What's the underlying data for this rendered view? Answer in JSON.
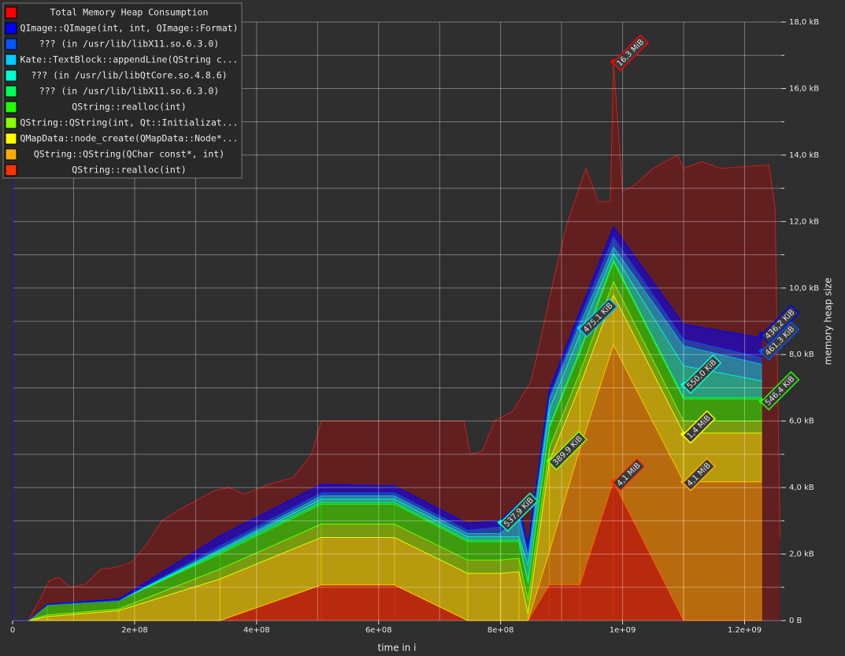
{
  "chart_data": {
    "type": "stacked-area",
    "x_label": "time in i",
    "y_label": "memory heap size",
    "xlim": [
      0,
      1260000000
    ],
    "ylim": [
      0,
      18
    ],
    "xticks": [
      0,
      {
        "value": 200000000,
        "label": "2e+08"
      },
      {
        "value": 400000000,
        "label": "4e+08"
      },
      {
        "value": 600000000,
        "label": "6e+08"
      },
      {
        "value": 800000000,
        "label": "8e+08"
      },
      {
        "value": 1000000000,
        "label": "1e+09"
      },
      {
        "value": 1200000000,
        "label": "1.2e+09"
      }
    ],
    "x_minor_ticks": [
      100000000,
      300000000,
      500000000,
      700000000,
      900000000,
      1100000000
    ],
    "yticks": [
      {
        "value": 0,
        "label": "0 B"
      },
      {
        "value": 2,
        "label": "2,0 kB"
      },
      {
        "value": 4,
        "label": "4,0 kB"
      },
      {
        "value": 6,
        "label": "6,0 kB"
      },
      {
        "value": 8,
        "label": "8,0 kB"
      },
      {
        "value": 10,
        "label": "10,0 kB"
      },
      {
        "value": 12,
        "label": "12,0 kB"
      },
      {
        "value": 14,
        "label": "14,0 kB"
      },
      {
        "value": 16,
        "label": "16,0 kB"
      },
      {
        "value": 18,
        "label": "18,0 kB"
      }
    ],
    "y_minor_ticks": [
      1,
      3,
      5,
      7,
      9,
      11,
      13,
      15,
      17
    ],
    "grid": true,
    "legend": "top-left",
    "total": {
      "name": "Total Memory Heap Consumption",
      "color": "#ff0000",
      "x": [
        0,
        25000000,
        41000000,
        60000000,
        76000000,
        94000000,
        120000000,
        145000000,
        170000000,
        195000000,
        220000000,
        245000000,
        270000000,
        300000000,
        330000000,
        355000000,
        380000000,
        420000000,
        460000000,
        490000000,
        506000000,
        740000000,
        750000000,
        770000000,
        790000000,
        820000000,
        850000000,
        860000000,
        890000000,
        910000000,
        940000000,
        960000000,
        980000000,
        985000000,
        1000000000,
        1020000000,
        1050000000,
        1090000000,
        1100000000,
        1130000000,
        1160000000,
        1200000000,
        1240000000,
        1250000000,
        1258000000
      ],
      "values": [
        0,
        0,
        0.5,
        1.2,
        1.3,
        1.0,
        1.1,
        1.55,
        1.6,
        1.75,
        2.3,
        3.0,
        3.3,
        3.6,
        3.9,
        4.0,
        3.8,
        4.1,
        4.3,
        5.0,
        6.0,
        6.0,
        5.0,
        5.1,
        6.0,
        6.3,
        7.2,
        8.0,
        10.5,
        12.0,
        13.6,
        12.6,
        12.6,
        16.8,
        12.9,
        13.1,
        13.6,
        14.0,
        13.6,
        13.8,
        13.6,
        13.65,
        13.7,
        12.4,
        2.5
      ]
    },
    "x": [
      0,
      25000000,
      57000000,
      174000000,
      340000000,
      506000000,
      626000000,
      746000000,
      800000000,
      830000000,
      845000000,
      880000000,
      930000000,
      985000000,
      1100000000,
      1228000000
    ],
    "series": [
      {
        "name": "QImage::QImage(int, int, QImage::Format)",
        "color": "#0000ff",
        "values": [
          0,
          0,
          0.02,
          0.05,
          0.3,
          0.25,
          0.2,
          0.2,
          0.2,
          0.2,
          0.2,
          0.2,
          0.2,
          0.3,
          0.45,
          0.6
        ]
      },
      {
        "name": "??? (in /usr/lib/libX11.so.6.3.0)",
        "color": "#0055ff",
        "values": [
          0,
          0,
          0,
          0,
          0.1,
          0.1,
          0.1,
          0.1,
          0.2,
          0.2,
          0.1,
          0.1,
          0.2,
          0.3,
          0.2,
          0.2
        ]
      },
      {
        "name": "Kate::TextBlock::appendLine(QString c...",
        "color": "#00ccff",
        "values": [
          0,
          0,
          0,
          0,
          0.05,
          0.1,
          0.1,
          0.1,
          0.1,
          0.6,
          0.3,
          0.3,
          0.3,
          0.2,
          0.6,
          0.5
        ]
      },
      {
        "name": "??? (in /usr/lib/libQtCore.so.4.8.6)",
        "color": "#00ffcc",
        "values": [
          0,
          0,
          0,
          0,
          0.05,
          0.1,
          0.1,
          0.1,
          0.1,
          0.1,
          0.5,
          0.5,
          0.5,
          0.2,
          0.95,
          0.5
        ]
      },
      {
        "name": "??? (in /usr/lib/libX11.so.6.3.0)",
        "color": "#00ff55",
        "values": [
          0,
          0,
          0,
          0,
          0.05,
          0.05,
          0.05,
          0.05,
          0.05,
          0.05,
          0.05,
          0.05,
          0.05,
          0.05,
          0.05,
          0.05
        ]
      },
      {
        "name": "QString::realloc(int)",
        "color": "#22ff00",
        "values": [
          0,
          0,
          0.3,
          0.25,
          0.45,
          0.6,
          0.6,
          0.55,
          0.55,
          0.5,
          0.5,
          0.6,
          0.6,
          0.6,
          0.66,
          0.66
        ]
      },
      {
        "name": "QString::QString(int, Qt::Initializat...",
        "color": "#88ff00",
        "values": [
          0,
          0,
          0.05,
          0.05,
          0.3,
          0.4,
          0.4,
          0.4,
          0.4,
          0.4,
          0.4,
          0.4,
          0.4,
          0.4,
          0.36,
          0.36
        ]
      },
      {
        "name": "QMapData::node_create(QMapData::Node*...",
        "color": "#ffff00",
        "values": [
          0,
          0,
          0.12,
          0.3,
          1.25,
          1.43,
          1.43,
          1.42,
          1.42,
          1.47,
          0.2,
          2.73,
          1.89,
          1.5,
          1.47,
          1.47
        ]
      },
      {
        "name": "QString::QString(QChar const*, int)",
        "color": "#ffaa00",
        "values": [
          0,
          0,
          0,
          0,
          0,
          0,
          0,
          0,
          0,
          0,
          0,
          1.0,
          4.1,
          4.12,
          4.17,
          4.17
        ]
      },
      {
        "name": "QString::realloc(int)",
        "color": "#ff3300",
        "values": [
          0,
          0,
          0,
          0,
          0,
          1.07,
          1.07,
          0,
          0,
          0,
          0,
          1.07,
          1.07,
          4.17,
          0,
          0
        ]
      }
    ],
    "annotations": [
      {
        "text": "16,3 MiB",
        "x": 985000000,
        "y": 16.8,
        "color": "#ff0000"
      },
      {
        "text": "436,2 KiB",
        "x": 1228000000,
        "y": 8.6,
        "color": "#0000ff"
      },
      {
        "text": "461,3 KiB",
        "x": 1228000000,
        "y": 8.1,
        "color": "#0055ff"
      },
      {
        "text": "475,1 KiB",
        "x": 930000000,
        "y": 8.8,
        "color": "#00ccff"
      },
      {
        "text": "550,0 KiB",
        "x": 1100000000,
        "y": 7.1,
        "color": "#00ffcc"
      },
      {
        "text": "546,4 KiB",
        "x": 1228000000,
        "y": 6.6,
        "color": "#22ff00"
      },
      {
        "text": "537,9 KiB",
        "x": 800000000,
        "y": 2.95,
        "color": "#00ffcc"
      },
      {
        "text": "389,9 KiB",
        "x": 880000000,
        "y": 4.8,
        "color": "#88ff00"
      },
      {
        "text": "1,4 MiB",
        "x": 1100000000,
        "y": 5.6,
        "color": "#ffff00"
      },
      {
        "text": "4,1 MiB",
        "x": 1100000000,
        "y": 4.17,
        "color": "#ffaa00"
      },
      {
        "text": "4,1 MiB",
        "x": 985000000,
        "y": 4.17,
        "color": "#ff3300"
      }
    ]
  }
}
